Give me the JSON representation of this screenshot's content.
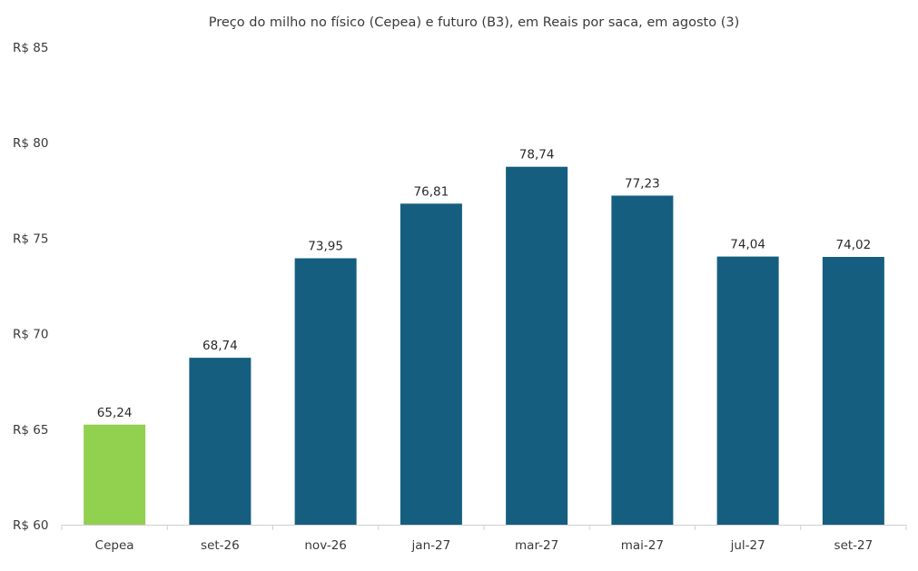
{
  "chart_data": {
    "type": "bar",
    "title": "Preço do milho no físico (Cepea) e futuro (B3), em Reais por saca, em agosto (3)",
    "xlabel": "",
    "ylabel": "",
    "ylim": [
      60,
      85
    ],
    "yticks": [
      60,
      65,
      70,
      75,
      80,
      85
    ],
    "ytick_prefix": "R$ ",
    "categories": [
      "Cepea",
      "set-26",
      "nov-26",
      "jan-27",
      "mar-27",
      "mai-27",
      "jul-27",
      "set-27"
    ],
    "values": [
      65.24,
      68.74,
      73.95,
      76.81,
      78.74,
      77.23,
      74.04,
      74.02
    ],
    "data_labels": [
      "65,24",
      "68,74",
      "73,95",
      "76,81",
      "78,74",
      "77,23",
      "74,04",
      "74,02"
    ],
    "bar_colors": [
      "#92d050",
      "#155e80",
      "#155e80",
      "#155e80",
      "#155e80",
      "#155e80",
      "#155e80",
      "#155e80"
    ],
    "grid": false,
    "legend": "none"
  }
}
